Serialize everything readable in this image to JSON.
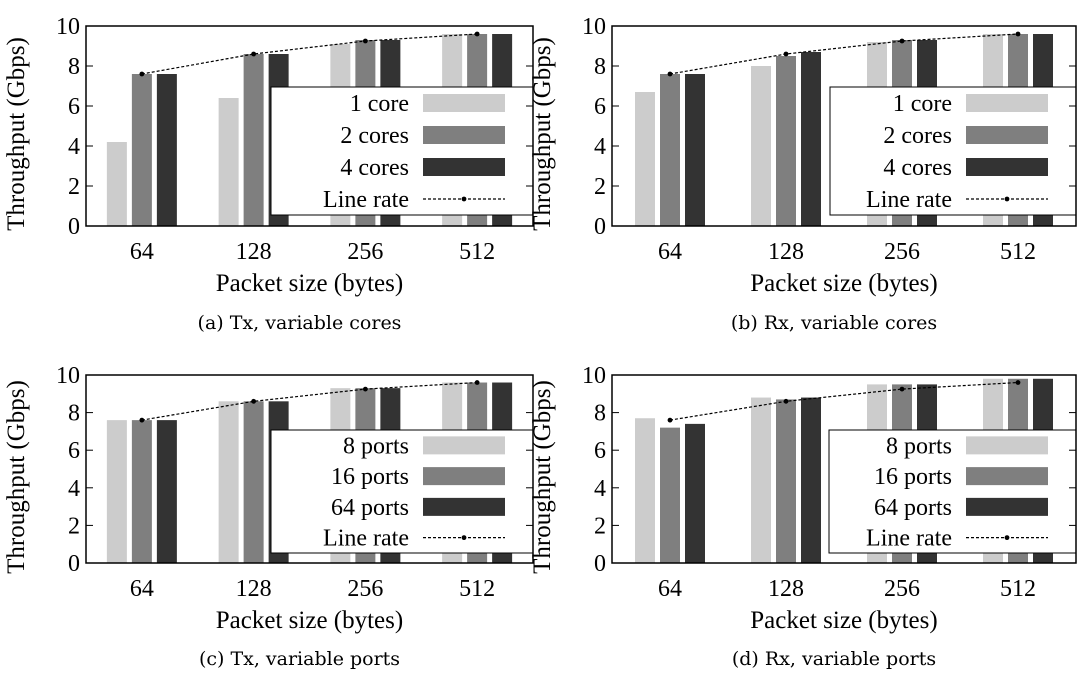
{
  "colors": {
    "series": [
      "#cccccc",
      "#7f7f7f",
      "#333333"
    ],
    "line": "#000000",
    "frame": "#000000"
  },
  "chart_data": [
    {
      "id": "a",
      "type": "bar",
      "caption": "(a) Tx, variable cores",
      "xlabel": "Packet size (bytes)",
      "ylabel": "Throughput (Gbps)",
      "ylim": [
        0,
        10
      ],
      "yticks": [
        0,
        2,
        4,
        6,
        8,
        10
      ],
      "categories": [
        "64",
        "128",
        "256",
        "512"
      ],
      "legend_placement": "right",
      "grid": false,
      "series": [
        {
          "name": "1 core",
          "values": [
            4.2,
            6.4,
            9.1,
            9.6
          ]
        },
        {
          "name": "2 cores",
          "values": [
            7.6,
            8.6,
            9.3,
            9.6
          ]
        },
        {
          "name": "4 cores",
          "values": [
            7.6,
            8.6,
            9.3,
            9.6
          ]
        }
      ],
      "line": {
        "name": "Line rate",
        "values": [
          7.6,
          8.6,
          9.25,
          9.6
        ]
      }
    },
    {
      "id": "b",
      "type": "bar",
      "caption": "(b) Rx, variable cores",
      "xlabel": "Packet size (bytes)",
      "ylabel": "Throughput (Gbps)",
      "ylim": [
        0,
        10
      ],
      "yticks": [
        0,
        2,
        4,
        6,
        8,
        10
      ],
      "categories": [
        "64",
        "128",
        "256",
        "512"
      ],
      "legend_placement": "right",
      "grid": false,
      "series": [
        {
          "name": "1 core",
          "values": [
            6.7,
            8.0,
            9.2,
            9.6
          ]
        },
        {
          "name": "2 cores",
          "values": [
            7.6,
            8.5,
            9.3,
            9.6
          ]
        },
        {
          "name": "4 cores",
          "values": [
            7.6,
            8.7,
            9.3,
            9.6
          ]
        }
      ],
      "line": {
        "name": "Line rate",
        "values": [
          7.6,
          8.6,
          9.25,
          9.6
        ]
      }
    },
    {
      "id": "c",
      "type": "bar",
      "caption": "(c) Tx, variable ports",
      "xlabel": "Packet size (bytes)",
      "ylabel": "Throughput (Gbps)",
      "ylim": [
        0,
        10
      ],
      "yticks": [
        0,
        2,
        4,
        6,
        8,
        10
      ],
      "categories": [
        "64",
        "128",
        "256",
        "512"
      ],
      "legend_placement": "right",
      "grid": false,
      "series": [
        {
          "name": "8 ports",
          "values": [
            7.6,
            8.6,
            9.3,
            9.6
          ]
        },
        {
          "name": "16 ports",
          "values": [
            7.6,
            8.6,
            9.3,
            9.6
          ]
        },
        {
          "name": "64 ports",
          "values": [
            7.6,
            8.6,
            9.3,
            9.6
          ]
        }
      ],
      "line": {
        "name": "Line rate",
        "values": [
          7.6,
          8.6,
          9.25,
          9.6
        ]
      }
    },
    {
      "id": "d",
      "type": "bar",
      "caption": "(d) Rx, variable ports",
      "xlabel": "Packet size (bytes)",
      "ylabel": "Throughput (Gbps)",
      "ylim": [
        0,
        10
      ],
      "yticks": [
        0,
        2,
        4,
        6,
        8,
        10
      ],
      "categories": [
        "64",
        "128",
        "256",
        "512"
      ],
      "legend_placement": "right",
      "grid": false,
      "series": [
        {
          "name": "8 ports",
          "values": [
            7.7,
            8.8,
            9.5,
            9.8
          ]
        },
        {
          "name": "16 ports",
          "values": [
            7.2,
            8.7,
            9.5,
            9.8
          ]
        },
        {
          "name": "64 ports",
          "values": [
            7.4,
            8.8,
            9.5,
            9.8
          ]
        }
      ],
      "line": {
        "name": "Line rate",
        "values": [
          7.6,
          8.6,
          9.25,
          9.6
        ]
      }
    }
  ]
}
